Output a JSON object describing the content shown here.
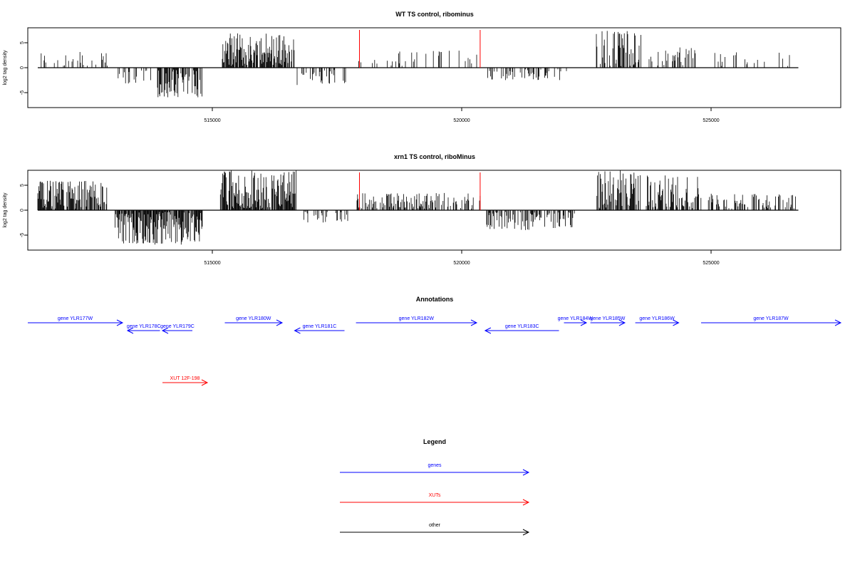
{
  "colors": {
    "gene": "#0000ff",
    "xut": "#ff0000",
    "other": "#000000",
    "marker": "#ff0000",
    "bars": "#000000"
  },
  "chart_data": [
    {
      "type": "bar",
      "title": "WT TS control, ribominus",
      "ylabel": "log2 tag density",
      "xlim": [
        511300,
        527600
      ],
      "ylim": [
        -8,
        8
      ],
      "yticks": [
        -5,
        0,
        5
      ],
      "xticks": [
        515000,
        520000,
        525000
      ],
      "xtick_labels": [
        "515000",
        "520000",
        "525000"
      ],
      "markers_x": [
        517950,
        520370
      ],
      "segments": [
        {
          "x_start": 511500,
          "x_end": 512900,
          "sign": 1,
          "max": 3.5,
          "density": 0.25
        },
        {
          "x_start": 513100,
          "x_end": 513800,
          "sign": -1,
          "max": 3.5,
          "density": 0.4
        },
        {
          "x_start": 513900,
          "x_end": 514800,
          "sign": -1,
          "max": 6,
          "density": 0.8
        },
        {
          "x_start": 515200,
          "x_end": 516650,
          "sign": 1,
          "max": 7,
          "density": 1.0
        },
        {
          "x_start": 516700,
          "x_end": 517700,
          "sign": -1,
          "max": 3.5,
          "density": 0.45
        },
        {
          "x_start": 517900,
          "x_end": 520350,
          "sign": 1,
          "max": 3.5,
          "density": 0.15
        },
        {
          "x_start": 520500,
          "x_end": 522100,
          "sign": -1,
          "max": 2.5,
          "density": 0.4
        },
        {
          "x_start": 522700,
          "x_end": 523600,
          "sign": 1,
          "max": 7.5,
          "density": 0.6
        },
        {
          "x_start": 523700,
          "x_end": 524700,
          "sign": 1,
          "max": 4.2,
          "density": 0.4
        },
        {
          "x_start": 524800,
          "x_end": 526700,
          "sign": 1,
          "max": 3.2,
          "density": 0.15
        }
      ]
    },
    {
      "type": "bar",
      "title": "xrn1 TS control, riboMinus",
      "ylabel": "log2 tag density",
      "xlim": [
        511300,
        527600
      ],
      "ylim": [
        -8,
        8
      ],
      "yticks": [
        -5,
        0,
        5
      ],
      "xticks": [
        515000,
        520000,
        525000
      ],
      "xtick_labels": [
        "515000",
        "520000",
        "525000"
      ],
      "markers_x": [
        517950,
        520370
      ],
      "segments": [
        {
          "x_start": 511500,
          "x_end": 512900,
          "sign": 1,
          "max": 6,
          "density": 0.9
        },
        {
          "x_start": 513050,
          "x_end": 514800,
          "sign": -1,
          "max": 7,
          "density": 1.0
        },
        {
          "x_start": 515150,
          "x_end": 516700,
          "sign": 1,
          "max": 8,
          "density": 1.0
        },
        {
          "x_start": 516800,
          "x_end": 517800,
          "sign": -1,
          "max": 2.5,
          "density": 0.3
        },
        {
          "x_start": 517900,
          "x_end": 520400,
          "sign": 1,
          "max": 3.5,
          "density": 0.6
        },
        {
          "x_start": 520500,
          "x_end": 522300,
          "sign": -1,
          "max": 4,
          "density": 0.6
        },
        {
          "x_start": 522700,
          "x_end": 523600,
          "sign": 1,
          "max": 8,
          "density": 0.8
        },
        {
          "x_start": 523700,
          "x_end": 524800,
          "sign": 1,
          "max": 7,
          "density": 0.7
        },
        {
          "x_start": 524900,
          "x_end": 526700,
          "sign": 1,
          "max": 3.3,
          "density": 0.4
        }
      ]
    }
  ],
  "annotations": {
    "title": "Annotations",
    "items": [
      {
        "label": "gene YLR177W",
        "type": "gene",
        "strand": "+",
        "start": 511300,
        "end": 513200,
        "row": 0
      },
      {
        "label": "gene YLR178C",
        "type": "gene",
        "strand": "-",
        "start": 513300,
        "end": 513950,
        "row": 1
      },
      {
        "label": "gene YLR179C",
        "type": "gene",
        "strand": "-",
        "start": 514000,
        "end": 514600,
        "row": 1
      },
      {
        "label": "gene YLR180W",
        "type": "gene",
        "strand": "+",
        "start": 515250,
        "end": 516400,
        "row": 0
      },
      {
        "label": "gene YLR181C",
        "type": "gene",
        "strand": "-",
        "start": 516650,
        "end": 517650,
        "row": 1
      },
      {
        "label": "gene YLR182W",
        "type": "gene",
        "strand": "+",
        "start": 517880,
        "end": 520300,
        "row": 0
      },
      {
        "label": "gene YLR183C",
        "type": "gene",
        "strand": "-",
        "start": 520470,
        "end": 521950,
        "row": 1
      },
      {
        "label": "gene YLR184W",
        "type": "gene",
        "strand": "+",
        "start": 522050,
        "end": 522500,
        "row": 0
      },
      {
        "label": "gene YLR185W",
        "type": "gene",
        "strand": "+",
        "start": 522580,
        "end": 523270,
        "row": 0
      },
      {
        "label": "gene YLR186W",
        "type": "gene",
        "strand": "+",
        "start": 523480,
        "end": 524350,
        "row": 0
      },
      {
        "label": "gene YLR187W",
        "type": "gene",
        "strand": "+",
        "start": 524800,
        "end": 527600,
        "row": 0
      },
      {
        "label": "XUT 12F-198",
        "type": "xut",
        "strand": "+",
        "start": 514000,
        "end": 514900,
        "row": 2
      }
    ]
  },
  "legend": {
    "title": "Legend",
    "items": [
      {
        "label": "genes",
        "type": "gene"
      },
      {
        "label": "XUTs",
        "type": "xut"
      },
      {
        "label": "other",
        "type": "other"
      }
    ]
  }
}
